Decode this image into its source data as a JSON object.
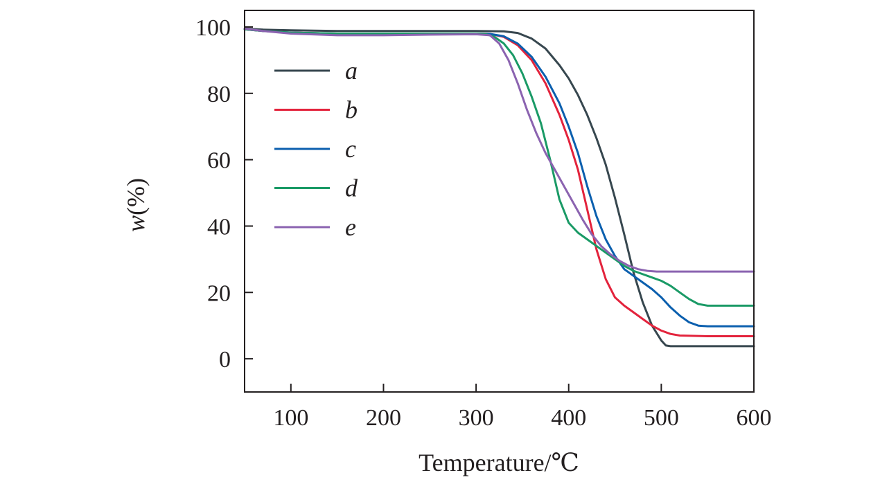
{
  "chart_data": {
    "type": "line",
    "title": "",
    "xlabel": "Temperature/℃",
    "ylabel_italic": "w",
    "ylabel_rest": "(%)",
    "xlim": [
      50,
      600
    ],
    "ylim": [
      -10,
      105
    ],
    "xticks": [
      100,
      200,
      300,
      400,
      500,
      600
    ],
    "yticks": [
      0,
      20,
      40,
      60,
      80,
      100
    ],
    "legend_position": "top-left",
    "series": [
      {
        "name": "a",
        "color": "#37474f",
        "points": [
          [
            50,
            99.5
          ],
          [
            70,
            99.2
          ],
          [
            100,
            99
          ],
          [
            150,
            98.8
          ],
          [
            200,
            98.8
          ],
          [
            250,
            98.8
          ],
          [
            300,
            98.8
          ],
          [
            330,
            98.7
          ],
          [
            345,
            98.2
          ],
          [
            360,
            96.5
          ],
          [
            375,
            93.5
          ],
          [
            390,
            88.5
          ],
          [
            400,
            84.5
          ],
          [
            410,
            79.5
          ],
          [
            420,
            73.5
          ],
          [
            430,
            66.5
          ],
          [
            440,
            58.5
          ],
          [
            450,
            48.5
          ],
          [
            460,
            37.5
          ],
          [
            470,
            26
          ],
          [
            480,
            17
          ],
          [
            490,
            10
          ],
          [
            500,
            5.5
          ],
          [
            505,
            4
          ],
          [
            510,
            3.8
          ],
          [
            530,
            3.8
          ],
          [
            560,
            3.8
          ],
          [
            600,
            3.8
          ]
        ]
      },
      {
        "name": "b",
        "color": "#e3233c",
        "points": [
          [
            50,
            99.3
          ],
          [
            70,
            98.8
          ],
          [
            100,
            98.3
          ],
          [
            150,
            98
          ],
          [
            200,
            98
          ],
          [
            250,
            98
          ],
          [
            300,
            98
          ],
          [
            315,
            97.9
          ],
          [
            330,
            97
          ],
          [
            345,
            94.5
          ],
          [
            360,
            90
          ],
          [
            375,
            83
          ],
          [
            390,
            73.5
          ],
          [
            400,
            66
          ],
          [
            410,
            57
          ],
          [
            420,
            45
          ],
          [
            430,
            33
          ],
          [
            440,
            24
          ],
          [
            450,
            18.5
          ],
          [
            460,
            16
          ],
          [
            470,
            14
          ],
          [
            480,
            12
          ],
          [
            490,
            10
          ],
          [
            500,
            8.5
          ],
          [
            510,
            7.5
          ],
          [
            520,
            7
          ],
          [
            550,
            6.8
          ],
          [
            600,
            6.8
          ]
        ]
      },
      {
        "name": "c",
        "color": "#0b5fae",
        "points": [
          [
            50,
            99.3
          ],
          [
            70,
            98.8
          ],
          [
            100,
            98.3
          ],
          [
            150,
            98
          ],
          [
            200,
            98
          ],
          [
            250,
            98
          ],
          [
            300,
            98
          ],
          [
            315,
            97.9
          ],
          [
            330,
            97.2
          ],
          [
            345,
            95
          ],
          [
            360,
            91
          ],
          [
            375,
            85
          ],
          [
            390,
            77
          ],
          [
            400,
            70
          ],
          [
            410,
            62
          ],
          [
            420,
            52
          ],
          [
            430,
            43
          ],
          [
            440,
            36
          ],
          [
            450,
            31
          ],
          [
            460,
            27
          ],
          [
            470,
            25
          ],
          [
            480,
            23
          ],
          [
            490,
            21
          ],
          [
            500,
            18.5
          ],
          [
            510,
            15.5
          ],
          [
            520,
            13
          ],
          [
            530,
            11
          ],
          [
            540,
            10
          ],
          [
            550,
            9.8
          ],
          [
            600,
            9.8
          ]
        ]
      },
      {
        "name": "d",
        "color": "#1a9a66",
        "points": [
          [
            50,
            99.3
          ],
          [
            70,
            98.8
          ],
          [
            100,
            98.3
          ],
          [
            150,
            98
          ],
          [
            200,
            98
          ],
          [
            250,
            98
          ],
          [
            300,
            98
          ],
          [
            310,
            97.9
          ],
          [
            320,
            97
          ],
          [
            330,
            95
          ],
          [
            340,
            91.5
          ],
          [
            350,
            86
          ],
          [
            360,
            79
          ],
          [
            370,
            71
          ],
          [
            380,
            60
          ],
          [
            390,
            48
          ],
          [
            400,
            41
          ],
          [
            410,
            38
          ],
          [
            420,
            36
          ],
          [
            430,
            34
          ],
          [
            440,
            32
          ],
          [
            450,
            30
          ],
          [
            460,
            28
          ],
          [
            470,
            26.5
          ],
          [
            480,
            25.5
          ],
          [
            490,
            24.5
          ],
          [
            500,
            23.5
          ],
          [
            510,
            22
          ],
          [
            520,
            20
          ],
          [
            530,
            18
          ],
          [
            540,
            16.5
          ],
          [
            550,
            16
          ],
          [
            600,
            16
          ]
        ]
      },
      {
        "name": "e",
        "color": "#8b63b0",
        "points": [
          [
            50,
            99.5
          ],
          [
            70,
            98.8
          ],
          [
            100,
            98
          ],
          [
            150,
            97.5
          ],
          [
            200,
            97.5
          ],
          [
            250,
            97.7
          ],
          [
            300,
            97.8
          ],
          [
            315,
            97.5
          ],
          [
            325,
            95
          ],
          [
            335,
            90
          ],
          [
            345,
            83
          ],
          [
            355,
            75
          ],
          [
            365,
            68
          ],
          [
            375,
            62
          ],
          [
            385,
            57
          ],
          [
            395,
            52
          ],
          [
            405,
            47
          ],
          [
            415,
            42
          ],
          [
            425,
            37.5
          ],
          [
            435,
            34
          ],
          [
            445,
            31.5
          ],
          [
            455,
            29.5
          ],
          [
            465,
            28
          ],
          [
            475,
            27
          ],
          [
            485,
            26.5
          ],
          [
            495,
            26.3
          ],
          [
            520,
            26.3
          ],
          [
            560,
            26.3
          ],
          [
            600,
            26.3
          ]
        ]
      }
    ]
  }
}
